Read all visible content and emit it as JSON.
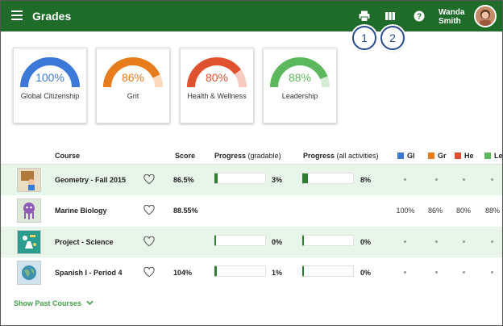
{
  "header": {
    "title": "Grades",
    "user_first": "Wanda",
    "user_last": "Smith",
    "icons": [
      "menu-icon",
      "print-icon",
      "columns-icon",
      "help-icon"
    ]
  },
  "callouts": [
    "1",
    "2"
  ],
  "gauges": [
    {
      "value": "100%",
      "fraction": 1.0,
      "label": "Global Citizenship",
      "color": "#3c78d8",
      "track": "#c9daf8"
    },
    {
      "value": "86%",
      "fraction": 0.86,
      "label": "Grit",
      "color": "#e67c1b",
      "track": "#fad9bd"
    },
    {
      "value": "80%",
      "fraction": 0.8,
      "label": "Health & Wellness",
      "color": "#e0512f",
      "track": "#f6cbc0"
    },
    {
      "value": "88%",
      "fraction": 0.88,
      "label": "Leadership",
      "color": "#5cb85c",
      "track": "#d4ecd4"
    }
  ],
  "table": {
    "headers": {
      "course": "Course",
      "score": "Score",
      "progress": "Progress",
      "progress_gradable": "(gradable)",
      "progress_all": "(all activities)"
    },
    "outcome_columns": [
      {
        "abbr": "Gl",
        "color": "#3c78d8"
      },
      {
        "abbr": "Gr",
        "color": "#e67c1b"
      },
      {
        "abbr": "He",
        "color": "#e0512f"
      },
      {
        "abbr": "Le",
        "color": "#5cb85c"
      }
    ],
    "rows": [
      {
        "name": "Geometry - Fall 2015",
        "score": "86.5%",
        "progress_gradable": "3%",
        "progress_gradable_fraction": 0.03,
        "progress_all": "8%",
        "progress_all_fraction": 0.08,
        "outcomes": [
          "",
          "",
          "",
          ""
        ]
      },
      {
        "name": "Marine Biology",
        "score": "88.55%",
        "progress_gradable": "",
        "progress_gradable_fraction": null,
        "progress_all": "",
        "progress_all_fraction": null,
        "outcomes": [
          "100%",
          "86%",
          "80%",
          "88%"
        ]
      },
      {
        "name": "Project - Science",
        "score": "",
        "progress_gradable": "0%",
        "progress_gradable_fraction": 0,
        "progress_all": "0%",
        "progress_all_fraction": 0,
        "outcomes": [
          "",
          "",
          "",
          ""
        ]
      },
      {
        "name": "Spanish I - Period 4",
        "score": "104%",
        "progress_gradable": "1%",
        "progress_gradable_fraction": 0.01,
        "progress_all": "0%",
        "progress_all_fraction": 0,
        "outcomes": [
          "",
          "",
          "",
          ""
        ]
      }
    ]
  },
  "footer": {
    "show_past": "Show Past Courses"
  }
}
